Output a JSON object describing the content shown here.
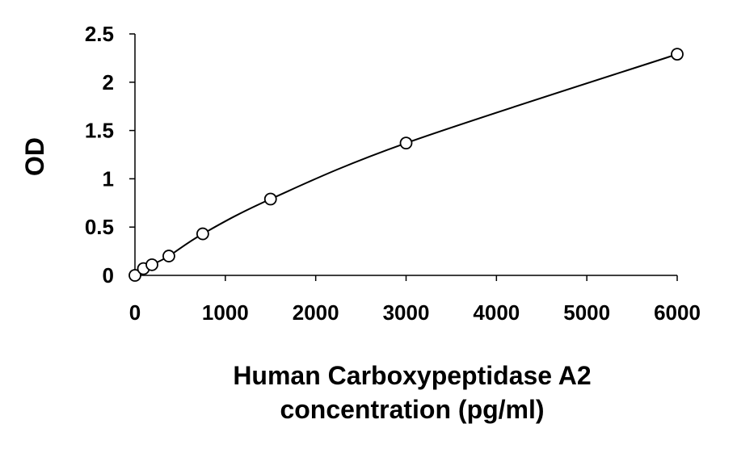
{
  "chart_data": {
    "type": "scatter",
    "title": "",
    "xlabel_lines": [
      "Human Carboxypeptidase A2",
      "concentration (pg/ml)"
    ],
    "ylabel": "OD",
    "xlim": [
      0,
      6000
    ],
    "ylim": [
      0,
      2.5
    ],
    "x_ticks": [
      0,
      1000,
      2000,
      3000,
      4000,
      5000,
      6000
    ],
    "x_tick_labels": [
      "0",
      "1000",
      "2000",
      "3000",
      "4000",
      "5000",
      "6000"
    ],
    "y_ticks": [
      0,
      0.5,
      1,
      1.5,
      2,
      2.5
    ],
    "y_tick_labels": [
      "0",
      "0.5",
      "1",
      "1.5",
      "2",
      "2.5"
    ],
    "grid": false,
    "legend": "none",
    "series": [
      {
        "marker": "open-circle",
        "fit_line": "smooth",
        "points": [
          {
            "x": 0,
            "y": 0.0
          },
          {
            "x": 94,
            "y": 0.07
          },
          {
            "x": 188,
            "y": 0.11
          },
          {
            "x": 375,
            "y": 0.2
          },
          {
            "x": 750,
            "y": 0.43
          },
          {
            "x": 1500,
            "y": 0.79
          },
          {
            "x": 3000,
            "y": 1.37
          },
          {
            "x": 6000,
            "y": 2.29
          }
        ]
      }
    ],
    "colors": {
      "line": "#000000",
      "marker_fill": "#ffffff",
      "text": "#000000"
    }
  }
}
